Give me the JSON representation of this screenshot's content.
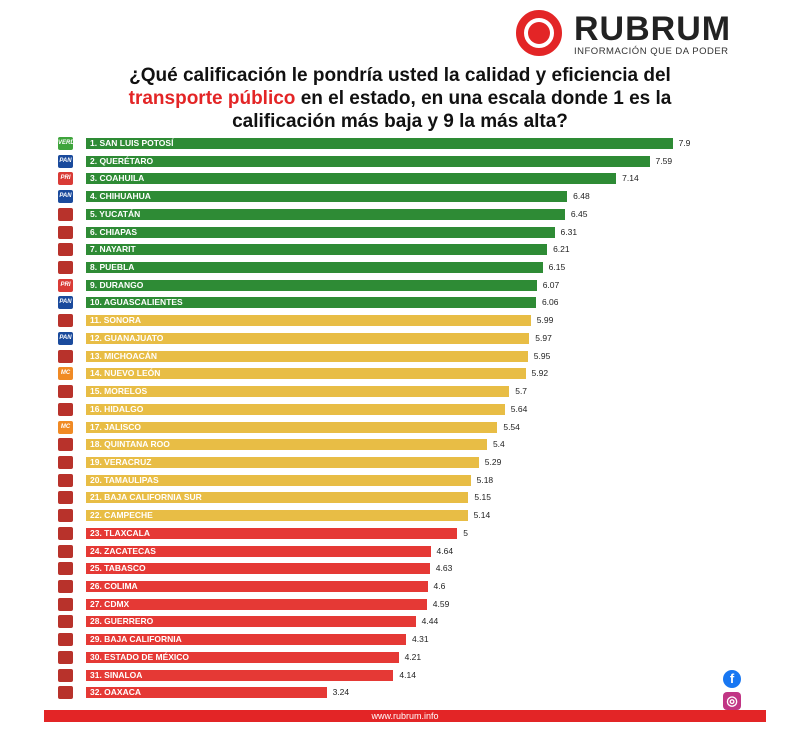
{
  "brand": {
    "name": "RUBRUM",
    "tagline": "INFORMACIÓN QUE DA PODER",
    "accent": "#e32526"
  },
  "title": {
    "part1": "¿Qué calificación le pondría usted la calidad y eficiencia del",
    "highlight": "transporte público",
    "part2": "en el estado, en una escala donde 1 es la calificación más baja y 9 la más alta?"
  },
  "footer": {
    "url": "www.rubrum.info"
  },
  "social": {
    "facebook": "facebook-icon",
    "instagram": "instagram-icon"
  },
  "party_colors": {
    "PVEM": "#3ea43b",
    "PAN": "#1a4a9c",
    "PRI": "#d93b36",
    "MORENA": "#b8322b",
    "MC": "#f08a24"
  },
  "chart_data": {
    "type": "bar",
    "orientation": "horizontal",
    "xlim": [
      0,
      9
    ],
    "colors": {
      "high": "#2e8b35",
      "mid": "#e8bd45",
      "low": "#e53935"
    },
    "categories": [
      "1. SAN LUIS POTOSÍ",
      "2. QUERÉTARO",
      "3. COAHUILA",
      "4. CHIHUAHUA",
      "5. YUCATÁN",
      "6. CHIAPAS",
      "7. NAYARIT",
      "8. PUEBLA",
      "9. DURANGO",
      "10. AGUASCALIENTES",
      "11. SONORA",
      "12. GUANAJUATO",
      "13. MICHOACÁN",
      "14. NUEVO LEÓN",
      "15. MORELOS",
      "16. HIDALGO",
      "17. JALISCO",
      "18. QUINTANA ROO",
      "19. VERACRUZ",
      "20. TAMAULIPAS",
      "21. BAJA CALIFORNIA SUR",
      "22. CAMPECHE",
      "23. TLAXCALA",
      "24. ZACATECAS",
      "25. TABASCO",
      "26. COLIMA",
      "27. CDMX",
      "28. GUERRERO",
      "29. BAJA CALIFORNIA",
      "30. ESTADO DE MÉXICO",
      "31. SINALOA",
      "32. OAXACA"
    ],
    "values": [
      7.9,
      7.59,
      7.14,
      6.48,
      6.45,
      6.31,
      6.21,
      6.15,
      6.07,
      6.06,
      5.99,
      5.97,
      5.95,
      5.92,
      5.7,
      5.64,
      5.54,
      5.4,
      5.29,
      5.18,
      5.15,
      5.14,
      5,
      4.64,
      4.63,
      4.6,
      4.59,
      4.44,
      4.31,
      4.21,
      4.14,
      3.24
    ],
    "tiers": [
      "high",
      "high",
      "high",
      "high",
      "high",
      "high",
      "high",
      "high",
      "high",
      "high",
      "mid",
      "mid",
      "mid",
      "mid",
      "mid",
      "mid",
      "mid",
      "mid",
      "mid",
      "mid",
      "mid",
      "mid",
      "low",
      "low",
      "low",
      "low",
      "low",
      "low",
      "low",
      "low",
      "low",
      "low"
    ],
    "party": [
      "PVEM",
      "PAN",
      "PRI",
      "PAN",
      "MORENA",
      "MORENA",
      "MORENA",
      "MORENA",
      "PRI",
      "PAN",
      "MORENA",
      "PAN",
      "MORENA",
      "MC",
      "MORENA",
      "MORENA",
      "MC",
      "MORENA",
      "MORENA",
      "MORENA",
      "MORENA",
      "MORENA",
      "MORENA",
      "MORENA",
      "MORENA",
      "MORENA",
      "MORENA",
      "MORENA",
      "MORENA",
      "MORENA",
      "MORENA",
      "MORENA"
    ]
  }
}
